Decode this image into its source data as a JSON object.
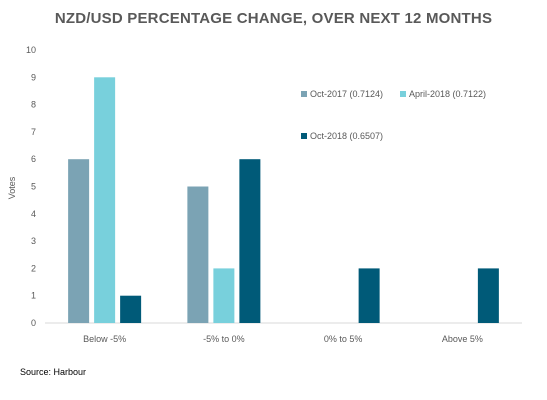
{
  "chart_data": {
    "type": "bar",
    "title": "NZD/USD PERCENTAGE CHANGE, OVER NEXT 12 MONTHS",
    "xlabel": "",
    "ylabel": "Votes",
    "ylim": [
      0,
      10
    ],
    "yticks": [
      "0",
      "1",
      "2",
      "3",
      "4",
      "5",
      "6",
      "7",
      "8",
      "9",
      "10"
    ],
    "grid": false,
    "legend_position": "top-right",
    "categories": [
      "Below -5%",
      "-5% to 0%",
      "0% to 5%",
      "Above 5%"
    ],
    "series": [
      {
        "name": "Oct-2017 (0.7124)",
        "color": "#7BA3B4",
        "values": [
          6,
          5,
          0,
          0
        ]
      },
      {
        "name": "April-2018 (0.7122)",
        "color": "#78D0DC",
        "values": [
          9,
          2,
          0,
          0
        ]
      },
      {
        "name": "Oct-2018 (0.6507)",
        "color": "#005A78",
        "values": [
          1,
          6,
          2,
          2
        ]
      }
    ]
  },
  "source": "Source: Harbour"
}
